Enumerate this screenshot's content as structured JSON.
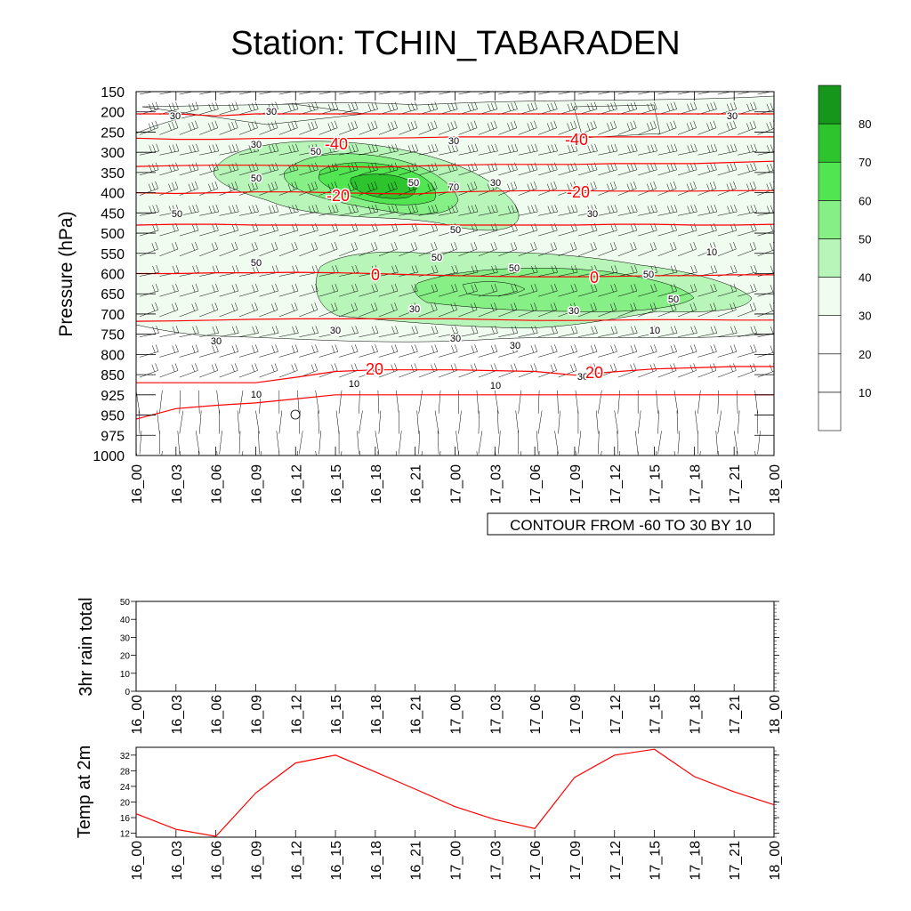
{
  "page": {
    "title": "Station: TCHIN_TABARADEN"
  },
  "colors": {
    "green_levels": [
      "#ffffff",
      "#ffffff",
      "#ffffff",
      "#f0fcf0",
      "#b8f5b8",
      "#86ef86",
      "#52e552",
      "#2ec42e",
      "#16961a"
    ],
    "temp_contour": "#ff0000",
    "line": "#000000"
  },
  "chart_data": [
    {
      "type": "heatmap",
      "title": "Station: TCHIN_TABARADEN",
      "ylabel": "Pressure (hPa)",
      "xlabel": "",
      "x": [
        "16_00",
        "16_03",
        "16_06",
        "16_09",
        "16_12",
        "16_15",
        "16_18",
        "16_21",
        "17_00",
        "17_03",
        "17_06",
        "17_09",
        "17_12",
        "17_15",
        "17_18",
        "17_21",
        "18_00"
      ],
      "y_levels": [
        "150",
        "200",
        "250",
        "300",
        "350",
        "400",
        "450",
        "500",
        "550",
        "600",
        "650",
        "700",
        "750",
        "800",
        "850",
        "925",
        "950",
        "975",
        "1000"
      ],
      "info_label": "CONTOUR FROM -60 TO 30 BY 10",
      "colorbar": {
        "levels": [
          10,
          20,
          30,
          40,
          50,
          60,
          70,
          80
        ],
        "labels": [
          "10",
          "20",
          "30",
          "40",
          "50",
          "60",
          "70",
          "80"
        ]
      },
      "humidity_labels": [
        "30",
        "30",
        "30",
        "50",
        "50",
        "50",
        "70",
        "50",
        "30",
        "30",
        "50",
        "50",
        "50",
        "50",
        "50",
        "50",
        "30",
        "30",
        "30",
        "30",
        "30",
        "30",
        "10",
        "10",
        "10",
        "10",
        "10",
        "30",
        "30",
        "30"
      ],
      "temperature_labels": [
        "-40",
        "-40",
        "-20",
        "-20",
        "0",
        "0",
        "20",
        "20"
      ],
      "temperature_contours": [
        {
          "level": -50,
          "pressure": [
            205,
            205,
            210,
            205,
            205,
            205,
            205,
            205,
            205,
            205,
            205,
            205,
            205,
            205,
            205,
            205,
            205
          ]
        },
        {
          "level": -40,
          "pressure": [
            265,
            268,
            268,
            266,
            265,
            266,
            265,
            264,
            262,
            262,
            262,
            262,
            262,
            262,
            262,
            262,
            262
          ]
        },
        {
          "level": -30,
          "pressure": [
            335,
            333,
            332,
            332,
            333,
            335,
            337,
            334,
            332,
            330,
            330,
            330,
            328,
            328,
            328,
            325,
            322
          ]
        },
        {
          "level": -20,
          "pressure": [
            400,
            402,
            400,
            398,
            398,
            400,
            402,
            403,
            398,
            396,
            395,
            395,
            396,
            396,
            396,
            395,
            395
          ]
        },
        {
          "level": -10,
          "pressure": [
            480,
            478,
            478,
            480,
            480,
            480,
            480,
            478,
            480,
            480,
            480,
            480,
            478,
            478,
            480,
            480,
            478
          ]
        },
        {
          "level": 0,
          "pressure": [
            600,
            600,
            598,
            598,
            597,
            598,
            600,
            603,
            605,
            607,
            608,
            608,
            607,
            605,
            605,
            603,
            603
          ]
        },
        {
          "level": 10,
          "pressure": [
            718,
            717,
            715,
            713,
            712,
            712,
            712,
            712,
            712,
            714,
            716,
            716,
            715,
            714,
            714,
            715,
            715
          ]
        },
        {
          "level": 20,
          "pressure": [
            880,
            880,
            880,
            880,
            860,
            842,
            838,
            838,
            838,
            840,
            842,
            852,
            843,
            836,
            833,
            830,
            830
          ]
        },
        {
          "level": 30,
          "pressure": [
            955,
            942,
            938,
            935,
            930,
            925,
            925,
            925,
            925,
            925,
            925,
            925,
            925,
            925,
            925,
            925,
            925
          ]
        }
      ]
    },
    {
      "type": "bar",
      "title": "",
      "ylabel": "3hr rain total",
      "xlabel": "",
      "categories": [
        "16_00",
        "16_03",
        "16_06",
        "16_09",
        "16_12",
        "16_15",
        "16_18",
        "16_21",
        "17_00",
        "17_03",
        "17_06",
        "17_09",
        "17_12",
        "17_15",
        "17_18",
        "17_21",
        "18_00"
      ],
      "values": [
        0,
        0,
        0,
        0,
        0,
        0,
        0,
        0,
        0,
        0,
        0,
        0,
        0,
        0,
        0,
        0,
        0
      ],
      "ylim": [
        0,
        50
      ],
      "yticks": [
        "0",
        "10",
        "20",
        "30",
        "40",
        "50"
      ]
    },
    {
      "type": "line",
      "title": "",
      "ylabel": "Temp at 2m",
      "xlabel": "",
      "categories": [
        "16_00",
        "16_03",
        "16_06",
        "16_09",
        "16_12",
        "16_15",
        "16_18",
        "16_21",
        "17_00",
        "17_03",
        "17_06",
        "17_09",
        "17_12",
        "17_15",
        "17_18",
        "17_21",
        "18_00"
      ],
      "values": [
        17,
        13,
        11.2,
        22.3,
        30,
        32,
        27.7,
        23.3,
        18.8,
        15.5,
        13.2,
        26.3,
        32,
        33.5,
        26.5,
        22.6,
        19.3
      ],
      "ylim": [
        11,
        34
      ],
      "yticks": [
        "12",
        "16",
        "20",
        "24",
        "28",
        "32"
      ]
    }
  ]
}
